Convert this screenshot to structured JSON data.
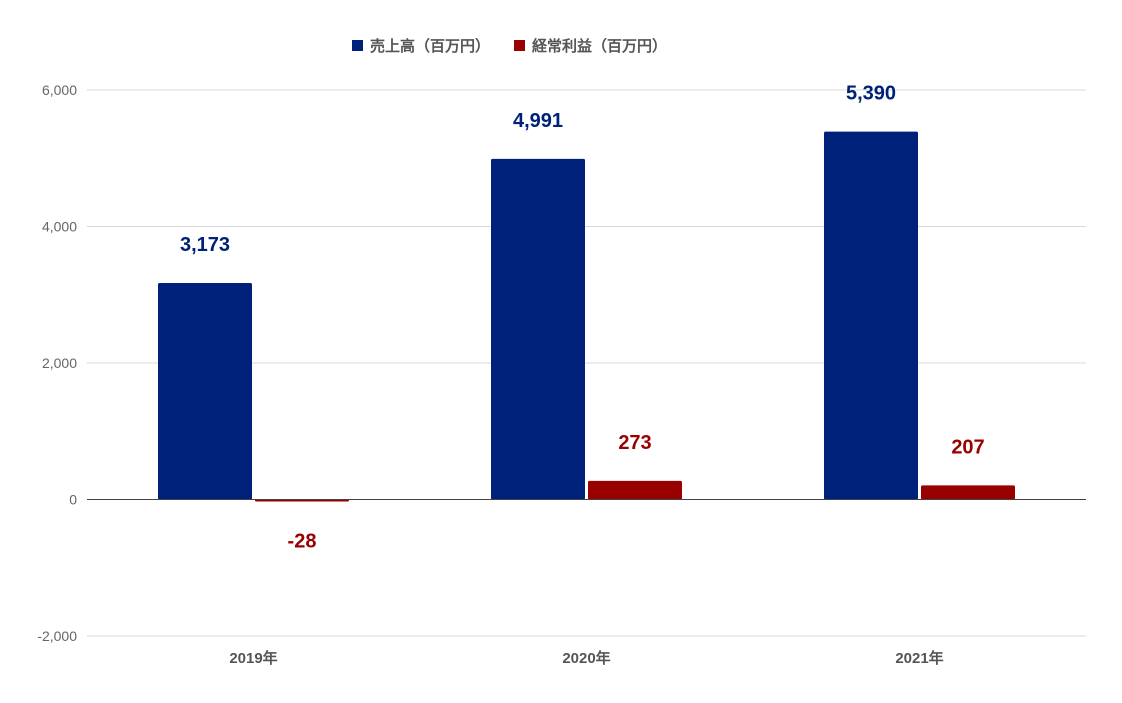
{
  "chart_data": {
    "type": "bar",
    "categories": [
      "2019年",
      "2020年",
      "2021年"
    ],
    "series": [
      {
        "name": "売上高（百万円）",
        "color": "#002179",
        "values": [
          3173,
          4991,
          5390
        ],
        "labels": [
          "3,173",
          "4,991",
          "5,390"
        ]
      },
      {
        "name": "経常利益（百万円）",
        "color": "#990000",
        "values": [
          -28,
          273,
          207
        ],
        "labels": [
          "-28",
          "273",
          "207"
        ]
      }
    ],
    "ylim": [
      -2000,
      6000
    ],
    "yticks": [
      6000,
      4000,
      2000,
      0,
      -2000
    ],
    "ytick_labels": [
      "6,000",
      "4,000",
      "2,000",
      "0",
      "-2,000"
    ],
    "grid": true,
    "legend_position": "top"
  }
}
